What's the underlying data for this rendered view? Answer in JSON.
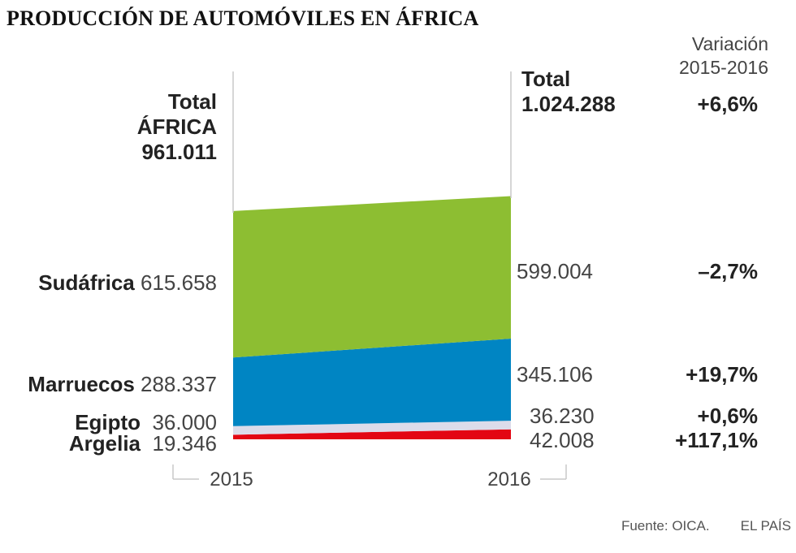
{
  "title": "PRODUCCIÓN DE AUTOMÓVILES EN ÁFRICA",
  "variation_header": [
    "Variación",
    "2015-2016"
  ],
  "total_2015": {
    "line1": "Total",
    "line2": "ÁFRICA",
    "value": "961.011"
  },
  "total_2016": {
    "line1": "Total",
    "value": "1.024.288"
  },
  "total_change": "+6,6%",
  "source": "Fuente: OICA.",
  "publisher": "EL PAÍS",
  "chart_data": {
    "type": "area",
    "title": "PRODUCCIÓN DE AUTOMÓVILES EN ÁFRICA",
    "x": [
      "2015",
      "2016"
    ],
    "stacked": true,
    "series": [
      {
        "name": "Argelia",
        "values": [
          19346,
          42008
        ],
        "label_2015": "19.346",
        "label_2016": "42.008",
        "change": "+117,1%",
        "color": "#e30613"
      },
      {
        "name": "Egipto",
        "values": [
          36000,
          36230
        ],
        "label_2015": "36.000",
        "label_2016": "36.230",
        "change": "+0,6%",
        "color": "#dcdcea"
      },
      {
        "name": "Marruecos",
        "values": [
          288337,
          345106
        ],
        "label_2015": "288.337",
        "label_2016": "345.106",
        "change": "+19,7%",
        "color": "#0085c3"
      },
      {
        "name": "Sudáfrica",
        "values": [
          615658,
          599004
        ],
        "label_2015": "615.658",
        "label_2016": "599.004",
        "change": "–2,7%",
        "color": "#8dbe32"
      }
    ],
    "totals": [
      961011,
      1024288
    ],
    "xlabel": "",
    "ylabel": ""
  }
}
